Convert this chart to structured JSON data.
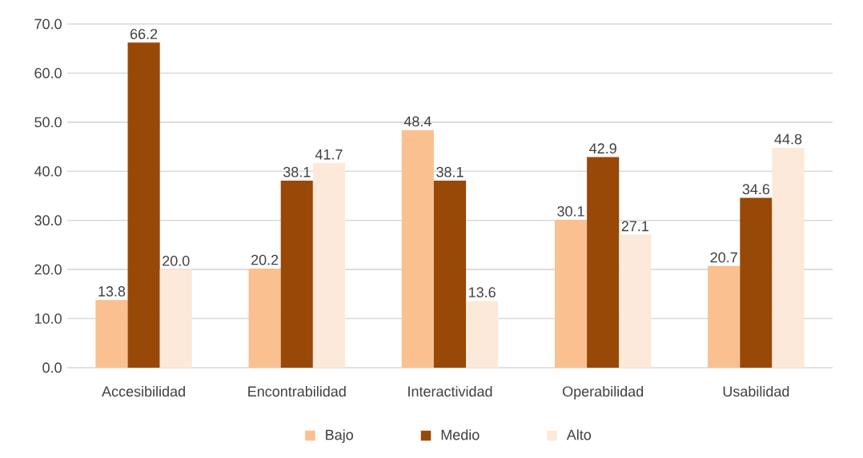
{
  "chart_data": {
    "type": "bar",
    "categories": [
      "Accesibilidad",
      "Encontrabilidad",
      "Interactividad",
      "Operabilidad",
      "Usabilidad"
    ],
    "series": [
      {
        "name": "Bajo",
        "color": "#fac090",
        "values": [
          13.8,
          20.2,
          48.4,
          30.1,
          20.7
        ],
        "value_labels": [
          "13.8",
          "20.2",
          "48.4",
          "30.1",
          "20.7"
        ]
      },
      {
        "name": "Medio",
        "color": "#984807",
        "values": [
          66.2,
          38.1,
          38.1,
          42.9,
          34.6
        ],
        "value_labels": [
          "66.2",
          "38.1",
          "38.1",
          "42.9",
          "34.6"
        ]
      },
      {
        "name": "Alto",
        "color": "#fde9d9",
        "values": [
          20.0,
          41.7,
          13.6,
          27.1,
          44.8
        ],
        "value_labels": [
          "20.0",
          "41.7",
          "13.6",
          "27.1",
          "44.8"
        ]
      }
    ],
    "ylim": [
      0,
      70
    ],
    "yticks": [
      {
        "value": 0,
        "label": "0.0"
      },
      {
        "value": 10,
        "label": "10.0"
      },
      {
        "value": 20,
        "label": "20.0"
      },
      {
        "value": 30,
        "label": "30.0"
      },
      {
        "value": 40,
        "label": "40.0"
      },
      {
        "value": 50,
        "label": "50.0"
      },
      {
        "value": 60,
        "label": "60.0"
      },
      {
        "value": 70,
        "label": "70.0"
      }
    ],
    "grid": "y",
    "legend": "bottom"
  }
}
